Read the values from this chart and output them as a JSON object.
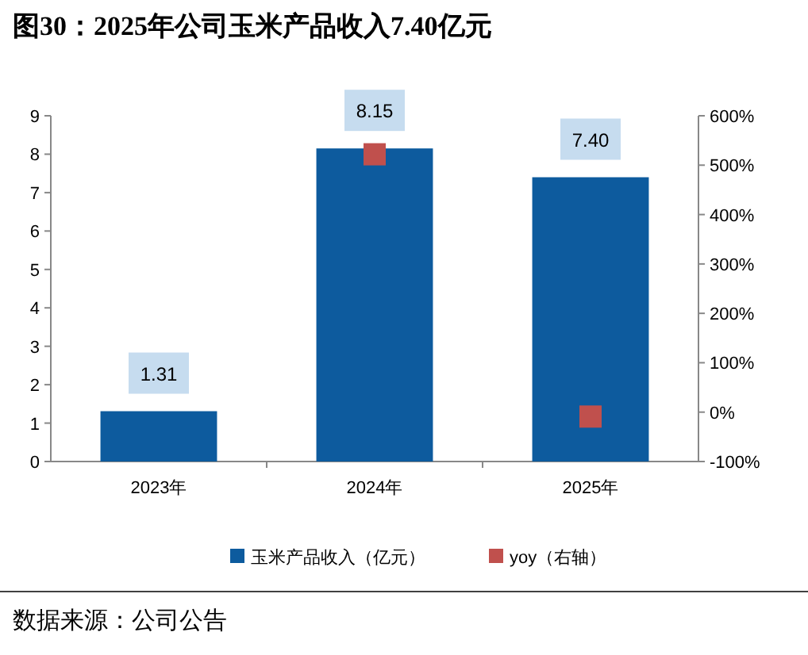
{
  "chart_data": {
    "type": "bar",
    "title": "图30：2025年公司玉米产品收入7.40亿元",
    "categories": [
      "2023年",
      "2024年",
      "2025年"
    ],
    "series": [
      {
        "name": "玉米产品收入（亿元）",
        "color": "#0d5b9e",
        "values": [
          1.31,
          8.15,
          7.4
        ],
        "value_labels": [
          "1.31",
          "8.15",
          "7.40"
        ]
      },
      {
        "name": "yoy（右轴）",
        "type": "scatter",
        "axis": "y2",
        "marker": "square",
        "color": "#c0504d",
        "values": [
          null,
          522,
          -9
        ]
      }
    ],
    "ylim": [
      0,
      9
    ],
    "yticks": [
      0,
      1,
      2,
      3,
      4,
      5,
      6,
      7,
      8,
      9
    ],
    "y2lim": [
      -100,
      600
    ],
    "y2ticks": [
      {
        "value": -100,
        "label": "-100%"
      },
      {
        "value": 0,
        "label": "0%"
      },
      {
        "value": 100,
        "label": "100%"
      },
      {
        "value": 200,
        "label": "200%"
      },
      {
        "value": 300,
        "label": "300%"
      },
      {
        "value": 400,
        "label": "400%"
      },
      {
        "value": 500,
        "label": "500%"
      },
      {
        "value": 600,
        "label": "600%"
      }
    ],
    "legend": "bottom",
    "grid": false,
    "annotations": [
      "数据来源：公司公告"
    ]
  }
}
